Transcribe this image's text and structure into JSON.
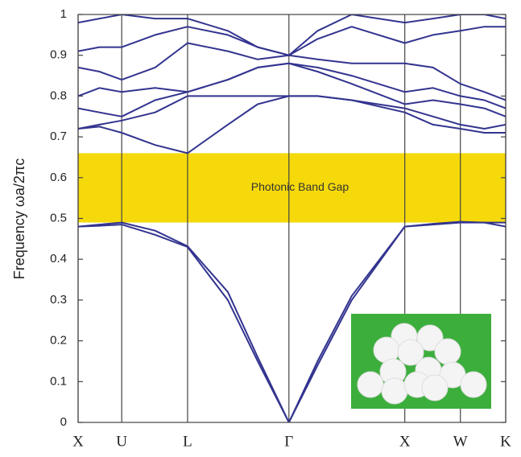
{
  "chart_data": {
    "type": "line",
    "y_label": "Frequency ωa/2πc",
    "xlim": [
      0,
      1
    ],
    "ylim": [
      0,
      1
    ],
    "xticks": [
      {
        "value": 0,
        "label": "X"
      },
      {
        "value": 0.102,
        "label": "U"
      },
      {
        "value": 0.256,
        "label": "L"
      },
      {
        "value": 0.493,
        "label": "Γ"
      },
      {
        "value": 0.764,
        "label": "X"
      },
      {
        "value": 0.894,
        "label": "W"
      },
      {
        "value": 1,
        "label": "K"
      }
    ],
    "yticks": [
      0,
      0.1,
      0.2,
      0.3,
      0.4,
      0.5,
      0.6,
      0.7,
      0.8,
      0.9,
      1
    ],
    "grid": true,
    "band_gap": {
      "label": "Photonic Band Gap",
      "range": [
        0.49,
        0.66
      ],
      "color": "#f5d90a"
    },
    "x": [
      0,
      0.05,
      0.102,
      0.18,
      0.256,
      0.35,
      0.42,
      0.493,
      0.56,
      0.64,
      0.764,
      0.83,
      0.894,
      0.95,
      1
    ],
    "series": [
      {
        "color": "#33348f",
        "values": [
          0.48,
          0.482,
          0.485,
          0.46,
          0.43,
          0.3,
          0.15,
          0,
          0.14,
          0.3,
          0.48,
          0.485,
          0.49,
          0.49,
          0.48
        ]
      },
      {
        "color": "#33348f",
        "values": [
          0.48,
          0.485,
          0.49,
          0.47,
          0.432,
          0.32,
          0.16,
          0,
          0.15,
          0.31,
          0.48,
          0.487,
          0.492,
          0.49,
          0.49
        ]
      },
      {
        "color": "#33348f",
        "values": [
          0.72,
          0.725,
          0.71,
          0.68,
          0.66,
          0.73,
          0.78,
          0.8,
          0.8,
          0.79,
          0.76,
          0.73,
          0.72,
          0.71,
          0.71
        ]
      },
      {
        "color": "#33348f",
        "values": [
          0.72,
          0.73,
          0.74,
          0.76,
          0.8,
          0.8,
          0.8,
          0.8,
          0.8,
          0.79,
          0.77,
          0.75,
          0.73,
          0.72,
          0.73
        ]
      },
      {
        "color": "#33348f",
        "values": [
          0.77,
          0.76,
          0.75,
          0.79,
          0.81,
          0.84,
          0.87,
          0.88,
          0.86,
          0.83,
          0.78,
          0.79,
          0.78,
          0.77,
          0.75
        ]
      },
      {
        "color": "#33348f",
        "values": [
          0.8,
          0.82,
          0.81,
          0.82,
          0.81,
          0.84,
          0.87,
          0.88,
          0.87,
          0.85,
          0.81,
          0.82,
          0.8,
          0.79,
          0.77
        ]
      },
      {
        "color": "#33348f",
        "values": [
          0.87,
          0.86,
          0.84,
          0.87,
          0.93,
          0.91,
          0.89,
          0.9,
          0.89,
          0.88,
          0.88,
          0.87,
          0.83,
          0.81,
          0.79
        ]
      },
      {
        "color": "#33348f",
        "values": [
          0.91,
          0.92,
          0.92,
          0.95,
          0.97,
          0.95,
          0.92,
          0.9,
          0.94,
          0.97,
          0.93,
          0.95,
          0.96,
          0.97,
          0.97
        ]
      },
      {
        "color": "#33348f",
        "values": [
          0.98,
          0.99,
          1,
          0.99,
          0.99,
          0.96,
          0.92,
          0.9,
          0.96,
          1,
          0.98,
          0.99,
          1,
          1,
          0.99
        ]
      }
    ]
  }
}
